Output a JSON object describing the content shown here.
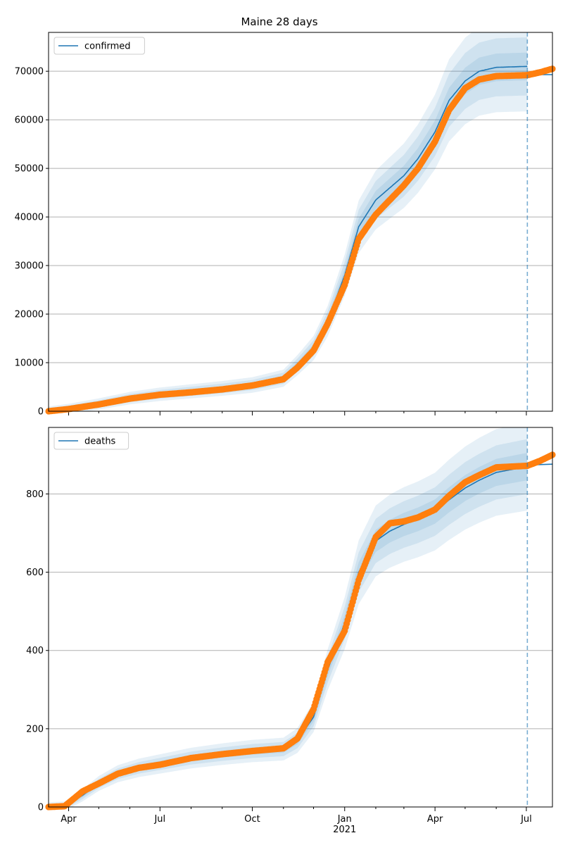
{
  "title": "Maine 28 days",
  "colors": {
    "model": "#1f77b4",
    "observed": "#ff7f0e",
    "band": "#1f77b4",
    "grid": "#b0b0b0",
    "cutoff": "#1f77b4"
  },
  "x_axis": {
    "ticks": [
      {
        "date": "2020-04-01",
        "label": "Apr"
      },
      {
        "date": "2020-07-01",
        "label": "Jul"
      },
      {
        "date": "2020-10-01",
        "label": "Oct"
      },
      {
        "date": "2021-01-01",
        "label": "Jan"
      },
      {
        "date": "2021-04-01",
        "label": "Apr"
      },
      {
        "date": "2021-07-01",
        "label": "Jul"
      }
    ],
    "year_label": "2021",
    "range": [
      "2020-03-12",
      "2021-07-27"
    ],
    "cutoff_date": "2021-07-02"
  },
  "chart_data": [
    {
      "type": "line",
      "name": "confirmed",
      "legend": [
        "confirmed"
      ],
      "legend_position": "upper-left",
      "grid": "horizontal",
      "ylim": [
        0,
        78000
      ],
      "yticks": [
        0,
        10000,
        20000,
        30000,
        40000,
        50000,
        60000,
        70000
      ],
      "model": [
        [
          "2020-03-12",
          0
        ],
        [
          "2020-04-01",
          500
        ],
        [
          "2020-05-01",
          1500
        ],
        [
          "2020-06-01",
          2700
        ],
        [
          "2020-07-01",
          3500
        ],
        [
          "2020-08-01",
          4100
        ],
        [
          "2020-09-01",
          4700
        ],
        [
          "2020-10-01",
          5400
        ],
        [
          "2020-11-01",
          6800
        ],
        [
          "2020-11-15",
          9500
        ],
        [
          "2020-12-01",
          13000
        ],
        [
          "2020-12-15",
          18500
        ],
        [
          "2021-01-01",
          28000
        ],
        [
          "2021-01-15",
          38000
        ],
        [
          "2021-02-01",
          43500
        ],
        [
          "2021-02-15",
          46000
        ],
        [
          "2021-03-01",
          48500
        ],
        [
          "2021-03-15",
          52000
        ],
        [
          "2021-04-01",
          57500
        ],
        [
          "2021-04-15",
          64000
        ],
        [
          "2021-05-01",
          68000
        ],
        [
          "2021-05-15",
          70000
        ],
        [
          "2021-06-01",
          70800
        ],
        [
          "2021-07-02",
          71000
        ]
      ],
      "model_after_cutoff": [
        [
          "2021-07-02",
          69300
        ],
        [
          "2021-07-27",
          69300
        ]
      ],
      "band_widths": [
        2000,
        4200,
        6500
      ],
      "observed": [
        [
          "2020-03-12",
          0
        ],
        [
          "2020-04-01",
          450
        ],
        [
          "2020-05-01",
          1400
        ],
        [
          "2020-06-01",
          2600
        ],
        [
          "2020-07-01",
          3400
        ],
        [
          "2020-08-01",
          3900
        ],
        [
          "2020-09-01",
          4500
        ],
        [
          "2020-10-01",
          5300
        ],
        [
          "2020-11-01",
          6600
        ],
        [
          "2020-11-15",
          9000
        ],
        [
          "2020-12-01",
          12500
        ],
        [
          "2020-12-15",
          18000
        ],
        [
          "2021-01-01",
          26000
        ],
        [
          "2021-01-15",
          35500
        ],
        [
          "2021-02-01",
          40500
        ],
        [
          "2021-02-15",
          43500
        ],
        [
          "2021-03-01",
          46500
        ],
        [
          "2021-03-15",
          50000
        ],
        [
          "2021-04-01",
          55500
        ],
        [
          "2021-04-15",
          62000
        ],
        [
          "2021-05-01",
          66500
        ],
        [
          "2021-05-15",
          68300
        ],
        [
          "2021-06-01",
          69000
        ],
        [
          "2021-07-02",
          69200
        ],
        [
          "2021-07-15",
          69800
        ],
        [
          "2021-07-27",
          70500
        ]
      ]
    },
    {
      "type": "line",
      "name": "deaths",
      "legend": [
        "deaths"
      ],
      "legend_position": "upper-left",
      "grid": "horizontal",
      "ylim": [
        0,
        970
      ],
      "yticks": [
        0,
        200,
        400,
        600,
        800
      ],
      "model": [
        [
          "2020-03-12",
          0
        ],
        [
          "2020-03-28",
          2
        ],
        [
          "2020-04-15",
          30
        ],
        [
          "2020-05-01",
          60
        ],
        [
          "2020-05-20",
          85
        ],
        [
          "2020-06-10",
          100
        ],
        [
          "2020-07-01",
          110
        ],
        [
          "2020-08-01",
          125
        ],
        [
          "2020-09-01",
          135
        ],
        [
          "2020-10-01",
          143
        ],
        [
          "2020-11-01",
          148
        ],
        [
          "2020-11-15",
          170
        ],
        [
          "2020-12-01",
          230
        ],
        [
          "2020-12-15",
          350
        ],
        [
          "2021-01-01",
          470
        ],
        [
          "2021-01-15",
          600
        ],
        [
          "2021-02-01",
          680
        ],
        [
          "2021-02-15",
          705
        ],
        [
          "2021-03-01",
          722
        ],
        [
          "2021-03-15",
          735
        ],
        [
          "2021-04-01",
          755
        ],
        [
          "2021-04-15",
          785
        ],
        [
          "2021-05-01",
          815
        ],
        [
          "2021-05-15",
          835
        ],
        [
          "2021-06-01",
          855
        ],
        [
          "2021-07-02",
          870
        ]
      ],
      "model_after_cutoff": [
        [
          "2021-07-02",
          874
        ],
        [
          "2021-07-27",
          876
        ]
      ],
      "band_widths": [
        25,
        50,
        80
      ],
      "observed": [
        [
          "2020-03-12",
          0
        ],
        [
          "2020-03-28",
          2
        ],
        [
          "2020-04-15",
          40
        ],
        [
          "2020-05-01",
          60
        ],
        [
          "2020-05-20",
          85
        ],
        [
          "2020-06-10",
          100
        ],
        [
          "2020-07-01",
          108
        ],
        [
          "2020-08-01",
          125
        ],
        [
          "2020-09-01",
          135
        ],
        [
          "2020-10-01",
          143
        ],
        [
          "2020-11-01",
          150
        ],
        [
          "2020-11-15",
          175
        ],
        [
          "2020-12-01",
          250
        ],
        [
          "2020-12-15",
          370
        ],
        [
          "2021-01-01",
          450
        ],
        [
          "2021-01-15",
          580
        ],
        [
          "2021-02-01",
          690
        ],
        [
          "2021-02-15",
          725
        ],
        [
          "2021-03-01",
          730
        ],
        [
          "2021-03-15",
          740
        ],
        [
          "2021-04-01",
          760
        ],
        [
          "2021-04-15",
          795
        ],
        [
          "2021-05-01",
          830
        ],
        [
          "2021-05-15",
          848
        ],
        [
          "2021-06-01",
          868
        ],
        [
          "2021-07-02",
          872
        ],
        [
          "2021-07-15",
          885
        ],
        [
          "2021-07-27",
          900
        ]
      ]
    }
  ]
}
